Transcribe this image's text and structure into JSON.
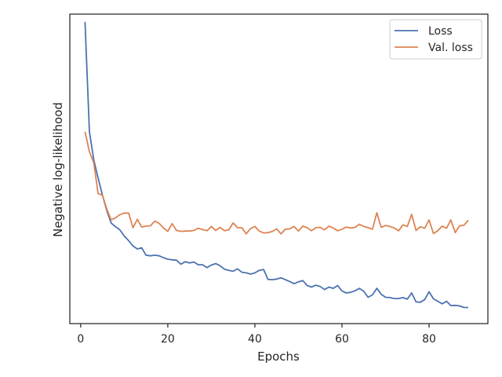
{
  "chart_data": {
    "type": "line",
    "title": "",
    "xlabel": "Epochs",
    "ylabel": "Negative log-likelihood",
    "xlim": [
      -2.5,
      93.5
    ],
    "ylim": [
      0.0,
      1.0
    ],
    "xticks": [
      0,
      20,
      40,
      60,
      80
    ],
    "yticks_shown": false,
    "grid": false,
    "legend_position": "top-right",
    "series": [
      {
        "name": "Loss",
        "color": "#4c72b0",
        "x": [
          1,
          2,
          3,
          4,
          5,
          6,
          7,
          8,
          9,
          10,
          11,
          12,
          13,
          14,
          15,
          16,
          17,
          18,
          19,
          20,
          21,
          22,
          23,
          24,
          25,
          26,
          27,
          28,
          29,
          30,
          31,
          32,
          33,
          34,
          35,
          36,
          37,
          38,
          39,
          40,
          41,
          42,
          43,
          44,
          45,
          46,
          47,
          48,
          49,
          50,
          51,
          52,
          53,
          54,
          55,
          56,
          57,
          58,
          59,
          60,
          61,
          62,
          63,
          64,
          65,
          66,
          67,
          68,
          69,
          70,
          71,
          72,
          73,
          74,
          75,
          76,
          77,
          78,
          79,
          80,
          81,
          82,
          83,
          84,
          85,
          86,
          87,
          88,
          89
        ],
        "y": [
          0.975,
          0.62,
          0.53,
          0.47,
          0.415,
          0.365,
          0.325,
          0.313,
          0.303,
          0.283,
          0.268,
          0.251,
          0.241,
          0.245,
          0.221,
          0.219,
          0.221,
          0.219,
          0.213,
          0.208,
          0.206,
          0.205,
          0.192,
          0.2,
          0.196,
          0.199,
          0.19,
          0.19,
          0.181,
          0.189,
          0.194,
          0.187,
          0.176,
          0.172,
          0.169,
          0.177,
          0.166,
          0.164,
          0.16,
          0.164,
          0.172,
          0.175,
          0.143,
          0.142,
          0.144,
          0.148,
          0.142,
          0.136,
          0.129,
          0.135,
          0.139,
          0.123,
          0.118,
          0.124,
          0.12,
          0.11,
          0.118,
          0.114,
          0.123,
          0.105,
          0.099,
          0.101,
          0.106,
          0.114,
          0.104,
          0.085,
          0.093,
          0.114,
          0.095,
          0.085,
          0.084,
          0.081,
          0.081,
          0.084,
          0.079,
          0.099,
          0.07,
          0.069,
          0.078,
          0.103,
          0.08,
          0.072,
          0.064,
          0.072,
          0.058,
          0.059,
          0.057,
          0.052,
          0.052
        ]
      },
      {
        "name": "Val. loss",
        "color": "#dd8452",
        "x": [
          1,
          2,
          3,
          4,
          5,
          6,
          7,
          8,
          9,
          10,
          11,
          12,
          13,
          14,
          15,
          16,
          17,
          18,
          19,
          20,
          21,
          22,
          23,
          24,
          25,
          26,
          27,
          28,
          29,
          30,
          31,
          32,
          33,
          34,
          35,
          36,
          37,
          38,
          39,
          40,
          41,
          42,
          43,
          44,
          45,
          46,
          47,
          48,
          49,
          50,
          51,
          52,
          53,
          54,
          55,
          56,
          57,
          58,
          59,
          60,
          61,
          62,
          63,
          64,
          65,
          66,
          67,
          68,
          69,
          70,
          71,
          72,
          73,
          74,
          75,
          76,
          77,
          78,
          79,
          80,
          81,
          82,
          83,
          84,
          85,
          86,
          87,
          88,
          89
        ],
        "y": [
          0.62,
          0.555,
          0.52,
          0.42,
          0.415,
          0.37,
          0.335,
          0.342,
          0.352,
          0.357,
          0.357,
          0.31,
          0.337,
          0.312,
          0.315,
          0.316,
          0.331,
          0.324,
          0.309,
          0.298,
          0.323,
          0.301,
          0.298,
          0.299,
          0.299,
          0.301,
          0.308,
          0.304,
          0.3,
          0.314,
          0.301,
          0.311,
          0.3,
          0.303,
          0.325,
          0.31,
          0.31,
          0.29,
          0.307,
          0.314,
          0.299,
          0.293,
          0.294,
          0.298,
          0.306,
          0.29,
          0.305,
          0.306,
          0.314,
          0.299,
          0.315,
          0.31,
          0.3,
          0.31,
          0.311,
          0.303,
          0.315,
          0.309,
          0.3,
          0.305,
          0.312,
          0.309,
          0.311,
          0.321,
          0.314,
          0.31,
          0.305,
          0.358,
          0.311,
          0.317,
          0.314,
          0.309,
          0.3,
          0.319,
          0.314,
          0.353,
          0.301,
          0.313,
          0.308,
          0.335,
          0.291,
          0.3,
          0.315,
          0.308,
          0.335,
          0.294,
          0.316,
          0.318,
          0.334
        ]
      }
    ]
  }
}
